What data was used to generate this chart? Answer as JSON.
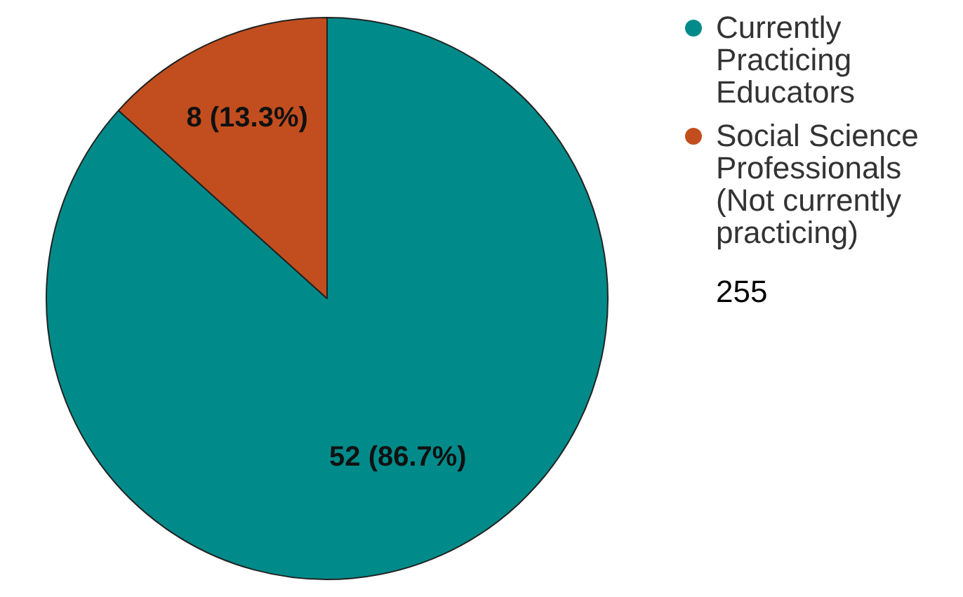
{
  "chart_data": {
    "type": "pie",
    "categories": [
      "Currently Practicing Educators",
      "Social Science Professionals (Not currently practicing)"
    ],
    "values": [
      52,
      8
    ],
    "colors": [
      "#008b8a",
      "#c24e1f"
    ],
    "value_labels": [
      "52 (86.7%)",
      "8 (13.3%)"
    ],
    "legend": "top right",
    "annotations": [
      "255"
    ]
  }
}
